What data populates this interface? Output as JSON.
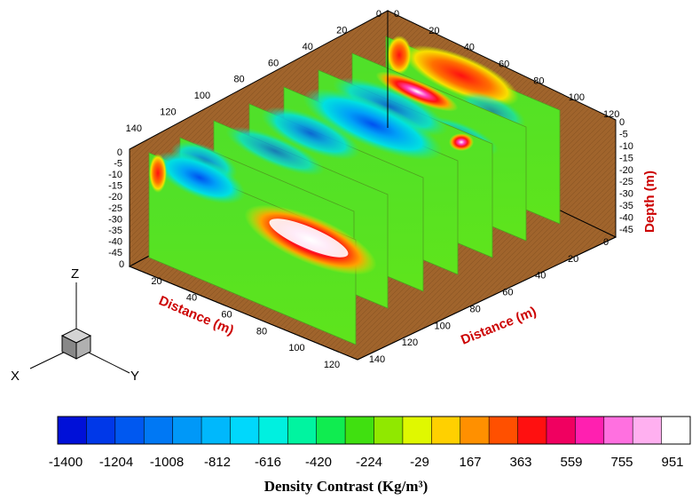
{
  "chart_data": {
    "type": "heatmap",
    "subtype": "3d-fence-slices",
    "x_axis_left": {
      "label": "Distance (m)",
      "ticks": [
        "0",
        "20",
        "40",
        "60",
        "80",
        "100",
        "120"
      ]
    },
    "x_axis_right": {
      "label": "Distance (m)",
      "ticks": [
        "0",
        "20",
        "40",
        "60",
        "80",
        "100",
        "120",
        "140"
      ]
    },
    "back_axis_a": {
      "ticks": [
        "0",
        "20",
        "40",
        "60",
        "80",
        "100",
        "120",
        "140"
      ]
    },
    "back_axis_b": {
      "ticks": [
        "0",
        "20",
        "40",
        "60",
        "80",
        "100",
        "120"
      ]
    },
    "depth_axis": {
      "label": "Depth (m)",
      "ticks": [
        "0",
        "-5",
        "-10",
        "-15",
        "-20",
        "-25",
        "-30",
        "-35",
        "-40",
        "-45"
      ]
    },
    "orientation_triad": [
      "Z",
      "X",
      "Y"
    ],
    "slice_count": 7,
    "colorbar": {
      "title": "Density Contrast (Kg/m³)",
      "tick_labels": [
        "-1400",
        "-1204",
        "-1008",
        "-812",
        "-616",
        "-420",
        "-224",
        "-29",
        "167",
        "363",
        "559",
        "755",
        "951"
      ],
      "colors": [
        "#0010d8",
        "#0038e8",
        "#0058f0",
        "#0078f4",
        "#0098f8",
        "#00b8fc",
        "#00d8fc",
        "#00f0e0",
        "#00f4a0",
        "#10ec50",
        "#40e010",
        "#90e800",
        "#e0f800",
        "#ffd000",
        "#ff9000",
        "#ff5000",
        "#ff1010",
        "#f00060",
        "#ff20b0",
        "#ff70e0",
        "#ffb0f0",
        "#ffffff"
      ]
    }
  }
}
